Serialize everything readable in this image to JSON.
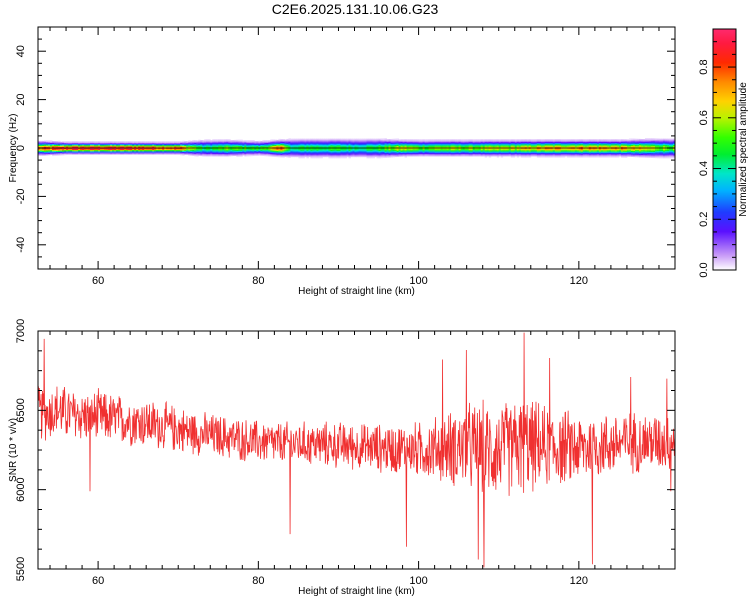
{
  "title": "C2E6.2025.131.10.06.G23",
  "chart_data": [
    {
      "type": "heatmap",
      "title": "",
      "xlabel": "Height of straight line (km)",
      "ylabel": "Frequency (Hz)",
      "xlim": [
        52.5,
        132
      ],
      "ylim": [
        -50,
        50
      ],
      "xticks": [
        60,
        80,
        100,
        120
      ],
      "yticks": [
        -40,
        -20,
        0,
        20,
        40
      ],
      "colorbar": {
        "label": "Normalized spectral amplitude",
        "range": [
          0.0,
          0.95
        ],
        "ticks": [
          0.0,
          0.2,
          0.4,
          0.6,
          0.8
        ]
      },
      "band": {
        "center_frequency": 0,
        "x": [
          53,
          56,
          60,
          65,
          70,
          73,
          76,
          80,
          83,
          84,
          86,
          88,
          90,
          92,
          95,
          98,
          100,
          103,
          106,
          110,
          115,
          120,
          125,
          130,
          132
        ],
        "peak_amplitude": [
          0.78,
          0.9,
          0.92,
          0.9,
          0.82,
          0.45,
          0.55,
          0.5,
          0.8,
          0.4,
          0.5,
          0.48,
          0.5,
          0.45,
          0.5,
          0.65,
          0.55,
          0.6,
          0.58,
          0.62,
          0.7,
          0.75,
          0.72,
          0.6,
          0.55
        ],
        "half_width_hz": [
          3,
          2.5,
          2.5,
          2.5,
          2.5,
          3.5,
          3.5,
          3,
          3.5,
          4,
          4,
          4,
          4,
          4,
          4,
          3.5,
          3.5,
          3.5,
          3.5,
          3.5,
          3.5,
          3.5,
          3.5,
          4,
          4
        ]
      }
    },
    {
      "type": "line",
      "title": "",
      "xlabel": "Height of straight line (km)",
      "ylabel": "SNR (10 * v/v)",
      "xlim": [
        52.5,
        132
      ],
      "ylim": [
        5500,
        7000
      ],
      "xticks": [
        60,
        80,
        100,
        120
      ],
      "yticks": [
        5500,
        6000,
        6500,
        7000
      ],
      "color": "#f03030",
      "x": [
        53,
        55,
        57,
        60,
        63,
        66,
        70,
        73,
        76,
        80,
        83,
        86,
        90,
        93,
        96,
        100,
        103,
        106,
        108,
        110,
        113,
        116,
        120,
        123,
        126,
        130,
        132
      ],
      "y": [
        6480,
        6500,
        6470,
        6460,
        6440,
        6420,
        6380,
        6350,
        6330,
        6300,
        6290,
        6290,
        6280,
        6270,
        6260,
        6250,
        6260,
        6270,
        6240,
        6250,
        6280,
        6270,
        6260,
        6280,
        6300,
        6300,
        6310
      ],
      "noise_amplitude": [
        180,
        180,
        170,
        170,
        160,
        160,
        150,
        140,
        140,
        140,
        140,
        140,
        150,
        150,
        160,
        180,
        220,
        280,
        320,
        300,
        320,
        260,
        230,
        210,
        200,
        190,
        180
      ],
      "spikes": [
        {
          "x": 53.3,
          "y": 6950
        },
        {
          "x": 59,
          "y": 5990
        },
        {
          "x": 84,
          "y": 5720
        },
        {
          "x": 98.5,
          "y": 5640
        },
        {
          "x": 103,
          "y": 6820
        },
        {
          "x": 106,
          "y": 6880
        },
        {
          "x": 107.5,
          "y": 5560
        },
        {
          "x": 108.2,
          "y": 5510
        },
        {
          "x": 113.2,
          "y": 6990
        },
        {
          "x": 116.4,
          "y": 6830
        },
        {
          "x": 121.7,
          "y": 5530
        },
        {
          "x": 126.5,
          "y": 6710
        },
        {
          "x": 131,
          "y": 6700
        },
        {
          "x": 131.5,
          "y": 5990
        }
      ]
    }
  ]
}
